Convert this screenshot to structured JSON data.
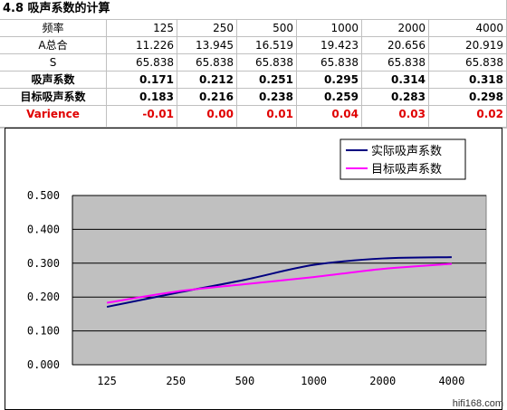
{
  "sheet": {
    "title": "4.8 吸声系数的计算",
    "header_label": "频率",
    "frequencies": [
      "125",
      "250",
      "500",
      "1000",
      "2000",
      "4000"
    ],
    "rows": [
      {
        "label": "A总合",
        "style": "normal",
        "values": [
          "11.226",
          "13.945",
          "16.519",
          "19.423",
          "20.656",
          "20.919"
        ]
      },
      {
        "label": "S",
        "style": "normal",
        "values": [
          "65.838",
          "65.838",
          "65.838",
          "65.838",
          "65.838",
          "65.838"
        ]
      },
      {
        "label": "吸声系数",
        "style": "bold",
        "values": [
          "0.171",
          "0.212",
          "0.251",
          "0.295",
          "0.314",
          "0.318"
        ]
      },
      {
        "label": "目标吸声系数",
        "style": "bold",
        "values": [
          "0.183",
          "0.216",
          "0.238",
          "0.259",
          "0.283",
          "0.298"
        ]
      },
      {
        "label": "Varience",
        "style": "red",
        "values": [
          "-0.01",
          "0.00",
          "0.01",
          "0.04",
          "0.03",
          "0.02"
        ]
      }
    ]
  },
  "chart_data": {
    "type": "line",
    "categories": [
      "125",
      "250",
      "500",
      "1000",
      "2000",
      "4000"
    ],
    "series": [
      {
        "name": "实际吸声系数",
        "color": "#000080",
        "values": [
          0.171,
          0.212,
          0.251,
          0.295,
          0.314,
          0.318
        ]
      },
      {
        "name": "目标吸声系数",
        "color": "#ff00ff",
        "values": [
          0.183,
          0.216,
          0.238,
          0.259,
          0.283,
          0.298
        ]
      }
    ],
    "yticks": [
      "0.000",
      "0.100",
      "0.200",
      "0.300",
      "0.400",
      "0.500"
    ],
    "ylim": [
      0,
      0.5
    ],
    "grid": true,
    "plot_background": "#c0c0c0",
    "legend_position": "top-right",
    "title": "",
    "xlabel": "",
    "ylabel": ""
  },
  "watermark": "hifi168.com"
}
